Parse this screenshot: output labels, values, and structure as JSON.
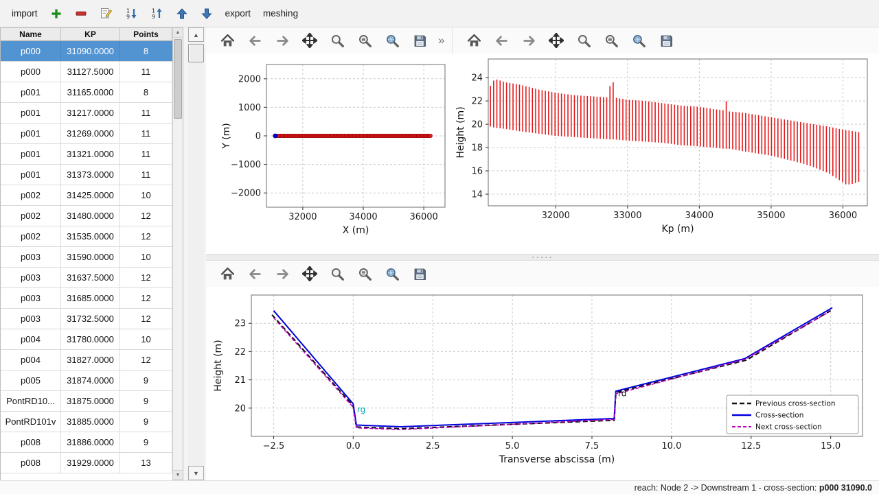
{
  "ui": {
    "arrow_up": "▲",
    "arrow_down": "▼",
    "splitter_handle": "·····",
    "overflow_label": "»"
  },
  "colors": {
    "selection": "#5294d2",
    "series_red": "#e31a1c",
    "series_blue": "#0000dd",
    "series_magenta": "#bb00bb",
    "series_black": "#111111",
    "label_cyan": "#00a8b0"
  },
  "top_toolbar": {
    "items": [
      {
        "type": "text",
        "id": "import",
        "label": "import"
      },
      {
        "type": "icon",
        "id": "add"
      },
      {
        "type": "icon",
        "id": "remove"
      },
      {
        "type": "icon",
        "id": "edit"
      },
      {
        "type": "icon",
        "id": "sort-ascending"
      },
      {
        "type": "icon",
        "id": "sort-descending"
      },
      {
        "type": "icon",
        "id": "move-up"
      },
      {
        "type": "icon",
        "id": "move-down"
      },
      {
        "type": "text",
        "id": "export",
        "label": "export"
      },
      {
        "type": "text",
        "id": "meshing",
        "label": "meshing"
      }
    ]
  },
  "mpl_toolbar_buttons": [
    "home",
    "back",
    "forward",
    "pan",
    "zoom",
    "configure",
    "zoom-rect",
    "save"
  ],
  "table": {
    "columns": [
      "Name",
      "KP",
      "Points"
    ],
    "selected_row": 0,
    "rows": [
      [
        "p000",
        "31090.0000",
        "8"
      ],
      [
        "p000",
        "31127.5000",
        "11"
      ],
      [
        "p001",
        "31165.0000",
        "8"
      ],
      [
        "p001",
        "31217.0000",
        "11"
      ],
      [
        "p001",
        "31269.0000",
        "11"
      ],
      [
        "p001",
        "31321.0000",
        "11"
      ],
      [
        "p001",
        "31373.0000",
        "11"
      ],
      [
        "p002",
        "31425.0000",
        "10"
      ],
      [
        "p002",
        "31480.0000",
        "12"
      ],
      [
        "p002",
        "31535.0000",
        "12"
      ],
      [
        "p003",
        "31590.0000",
        "10"
      ],
      [
        "p003",
        "31637.5000",
        "12"
      ],
      [
        "p003",
        "31685.0000",
        "12"
      ],
      [
        "p003",
        "31732.5000",
        "12"
      ],
      [
        "p004",
        "31780.0000",
        "10"
      ],
      [
        "p004",
        "31827.0000",
        "12"
      ],
      [
        "p005",
        "31874.0000",
        "9"
      ],
      [
        "PontRD10...",
        "31875.0000",
        "9"
      ],
      [
        "PontRD101v",
        "31885.0000",
        "9"
      ],
      [
        "p008",
        "31886.0000",
        "9"
      ],
      [
        "p008",
        "31929.0000",
        "13"
      ]
    ]
  },
  "status_bar": {
    "prefix": "reach: Node 2 -> Downstream 1 - cross-section: ",
    "current": "p000 31090.0"
  },
  "chart_data": [
    {
      "id": "plan_view",
      "type": "scatter",
      "xlabel": "X (m)",
      "ylabel": "Y (m)",
      "xlim": [
        30800,
        36700
      ],
      "ylim": [
        -2500,
        2500
      ],
      "xticks": [
        32000,
        34000,
        36000
      ],
      "xtick_labels": [
        "32000",
        "34000",
        "36000"
      ],
      "yticks": [
        -2000,
        -1000,
        0,
        1000,
        2000
      ],
      "ytick_labels": [
        "−2000",
        "−1000",
        "0",
        "1000",
        "2000"
      ],
      "grid": true,
      "points": {
        "x_start": 31090,
        "x_end": 36240,
        "x_step": 45,
        "y": 0,
        "color": "#e31a1c"
      },
      "selected_point": {
        "x": 31090,
        "y": 0,
        "color": "#0000dd"
      }
    },
    {
      "id": "long_profile",
      "type": "rangebars",
      "xlabel": "Kp (m)",
      "ylabel": "Height (m)",
      "xlim": [
        31060,
        36340
      ],
      "ylim": [
        13,
        25.6
      ],
      "xticks": [
        32000,
        33000,
        34000,
        35000,
        36000
      ],
      "xtick_labels": [
        "32000",
        "33000",
        "34000",
        "35000",
        "36000"
      ],
      "yticks": [
        14,
        16,
        18,
        20,
        22,
        24
      ],
      "ytick_labels": [
        "14",
        "16",
        "18",
        "20",
        "22",
        "24"
      ],
      "grid": true,
      "bar_step": 45,
      "bar_color": "#e31a1c",
      "envelope": {
        "kp": [
          31090,
          31150,
          31300,
          31500,
          31750,
          32000,
          32250,
          32500,
          32740,
          32780,
          32820,
          33000,
          33250,
          33500,
          33750,
          34000,
          34200,
          34340,
          34380,
          34420,
          34600,
          34800,
          35000,
          35200,
          35400,
          35600,
          35800,
          35950,
          36050,
          36150,
          36240
        ],
        "top": [
          23.3,
          23.9,
          23.6,
          23.4,
          23.0,
          22.7,
          22.5,
          22.4,
          22.3,
          24.9,
          22.3,
          22.1,
          22.0,
          21.8,
          21.6,
          21.5,
          21.3,
          21.2,
          22.1,
          21.1,
          21.0,
          20.8,
          20.6,
          20.4,
          20.2,
          20.0,
          19.8,
          19.6,
          19.5,
          19.4,
          19.3
        ],
        "bottom": [
          19.8,
          19.7,
          19.6,
          19.4,
          19.2,
          19.0,
          18.9,
          18.8,
          18.7,
          18.7,
          18.7,
          18.6,
          18.5,
          18.4,
          18.2,
          18.1,
          18.0,
          17.9,
          17.9,
          17.9,
          17.7,
          17.5,
          17.3,
          17.0,
          16.7,
          16.3,
          15.8,
          15.2,
          14.8,
          14.9,
          15.1
        ]
      }
    },
    {
      "id": "cross_section",
      "type": "line",
      "xlabel": "Transverse abscissa (m)",
      "ylabel": "Height (m)",
      "xlim": [
        -3.2,
        16.0
      ],
      "ylim": [
        19.0,
        24.0
      ],
      "xticks": [
        -2.5,
        0.0,
        2.5,
        5.0,
        7.5,
        10.0,
        12.5,
        15.0
      ],
      "xtick_labels": [
        "−2.5",
        "0.0",
        "2.5",
        "5.0",
        "7.5",
        "10.0",
        "12.5",
        "15.0"
      ],
      "yticks": [
        20,
        21,
        22,
        23
      ],
      "ytick_labels": [
        "20",
        "21",
        "22",
        "23"
      ],
      "grid": true,
      "series": [
        {
          "name": "Previous cross-section",
          "color": "#111111",
          "dash": "7 4",
          "width": 2.2,
          "x": [
            -2.55,
            0.0,
            0.1,
            1.5,
            8.2,
            8.25,
            12.35,
            15.0
          ],
          "y": [
            23.3,
            20.08,
            19.33,
            19.27,
            19.57,
            20.55,
            21.7,
            23.45
          ]
        },
        {
          "name": "Cross-section",
          "color": "#0000dd",
          "dash": "",
          "width": 2,
          "x": [
            -2.5,
            0.0,
            0.1,
            1.5,
            8.2,
            8.25,
            12.3,
            15.05
          ],
          "y": [
            23.45,
            20.15,
            19.4,
            19.34,
            19.63,
            20.6,
            21.75,
            23.55
          ]
        },
        {
          "name": "Next cross-section",
          "color": "#bb00bb",
          "dash": "5 3",
          "width": 1.6,
          "x": [
            -2.5,
            0.0,
            0.1,
            1.5,
            8.2,
            8.25,
            12.3,
            14.95
          ],
          "y": [
            23.2,
            20.03,
            19.3,
            19.24,
            19.6,
            20.5,
            21.72,
            23.4
          ]
        }
      ],
      "annotations": [
        {
          "text": "rg",
          "x": 0.12,
          "y": 19.85,
          "color": "#00a8b0"
        },
        {
          "text": "rd",
          "x": 8.32,
          "y": 20.42,
          "color": "#111111"
        }
      ],
      "legend": {
        "position": "lower right",
        "entries": [
          "Previous cross-section",
          "Cross-section",
          "Next cross-section"
        ]
      }
    }
  ]
}
